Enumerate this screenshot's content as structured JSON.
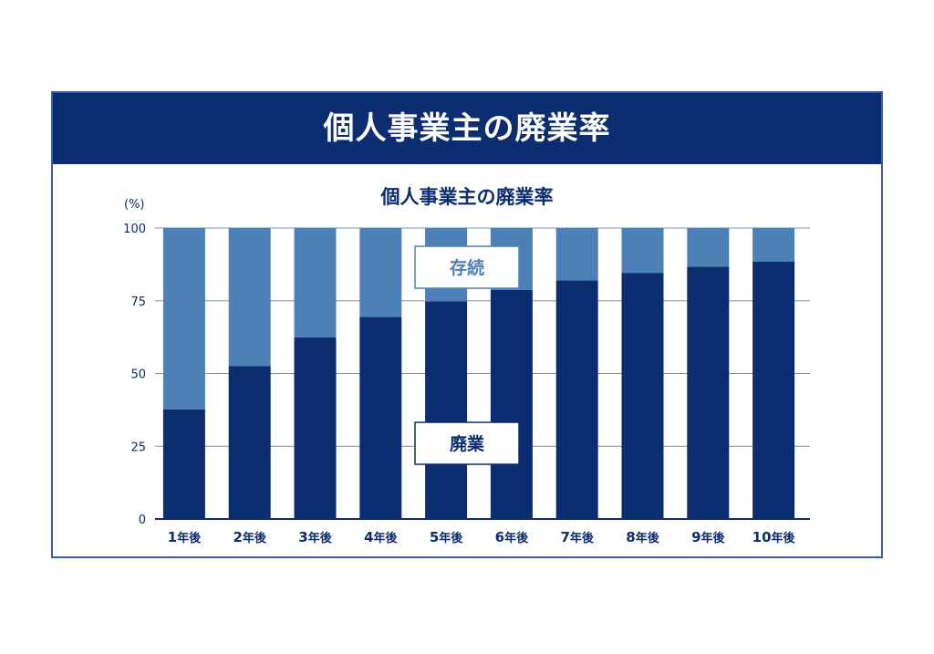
{
  "banner": {
    "title": "個人事業主の廃業率"
  },
  "chart_data": {
    "type": "bar",
    "stacked": true,
    "title": "個人事業主の廃業率",
    "y_unit": "(%)",
    "ylim": [
      0,
      100
    ],
    "yticks": [
      0,
      25,
      50,
      75,
      100
    ],
    "grid": true,
    "categories": [
      "1年後",
      "2年後",
      "3年後",
      "4年後",
      "5年後",
      "6年後",
      "7年後",
      "8年後",
      "9年後",
      "10年後"
    ],
    "series": [
      {
        "name": "廃業",
        "color": "#0c2d70",
        "values": [
          37.7,
          52.6,
          62.4,
          69.5,
          74.8,
          78.7,
          82.0,
          84.6,
          86.7,
          88.4
        ]
      },
      {
        "name": "存続",
        "color": "#4d80b6",
        "values": [
          62.3,
          47.4,
          37.6,
          30.5,
          25.2,
          21.3,
          18.0,
          15.4,
          13.3,
          11.6
        ]
      }
    ]
  }
}
